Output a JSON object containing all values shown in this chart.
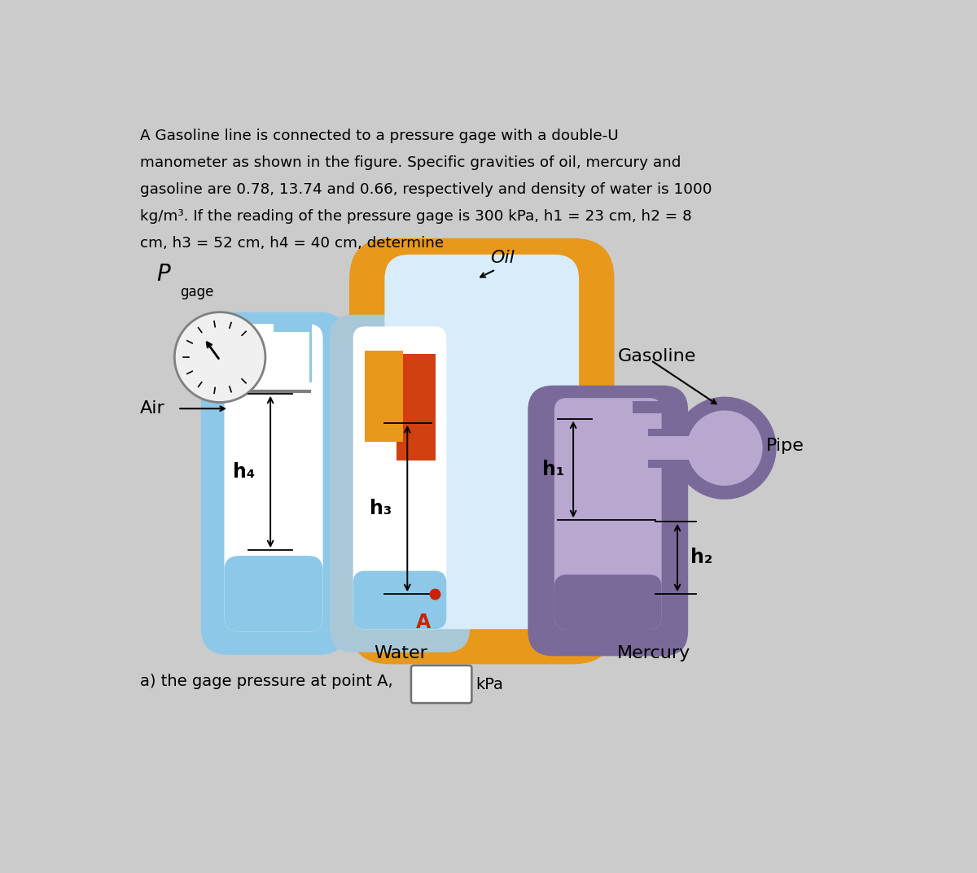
{
  "bg_color": "#CBCBCB",
  "colors": {
    "water_blue": "#8EC8E8",
    "oil_orange": "#E8981A",
    "oil_orange_light": "#F0B050",
    "mercury_dark": "#8B0000",
    "gasoline_purple_dark": "#7A6A9A",
    "gasoline_purple_light": "#B8A8D0",
    "tube_gray_dark": "#909090",
    "tube_gray_light": "#C8C8C8",
    "white": "#FFFFFF",
    "black": "#000000",
    "red_dot": "#CC2200",
    "gauge_bg": "#F0F0F0",
    "water_tube_outer": "#7ABADC",
    "center_tube_outer": "#A8C8D8",
    "inner_tube_light": "#D8ECFA"
  },
  "labels": {
    "P": "P",
    "gage": "gage",
    "air": "Air",
    "h4": "h₄",
    "h3": "h₃",
    "h1": "h₁",
    "h2": "h₂",
    "oil": "Oil",
    "gasoline": "Gasoline",
    "pipe": "Pipe",
    "water": "Water",
    "mercury": "Mercury",
    "A": "A"
  },
  "title_lines": [
    "A Gasoline line is connected to a pressure gage with a double-U",
    "manometer as shown in the figure. Specific gravities of oil, mercury and",
    "gasoline are 0.78, 13.74 and 0.66, respectively and density of water is 1000",
    "kg/m³. If the reading of the pressure gage is 300 kPa, h1 = 23 cm, h2 = 8",
    "cm, h3 = 52 cm, h4 = 40 cm, determine"
  ],
  "question": "a) the gage pressure at point A,",
  "unit": "kPa"
}
